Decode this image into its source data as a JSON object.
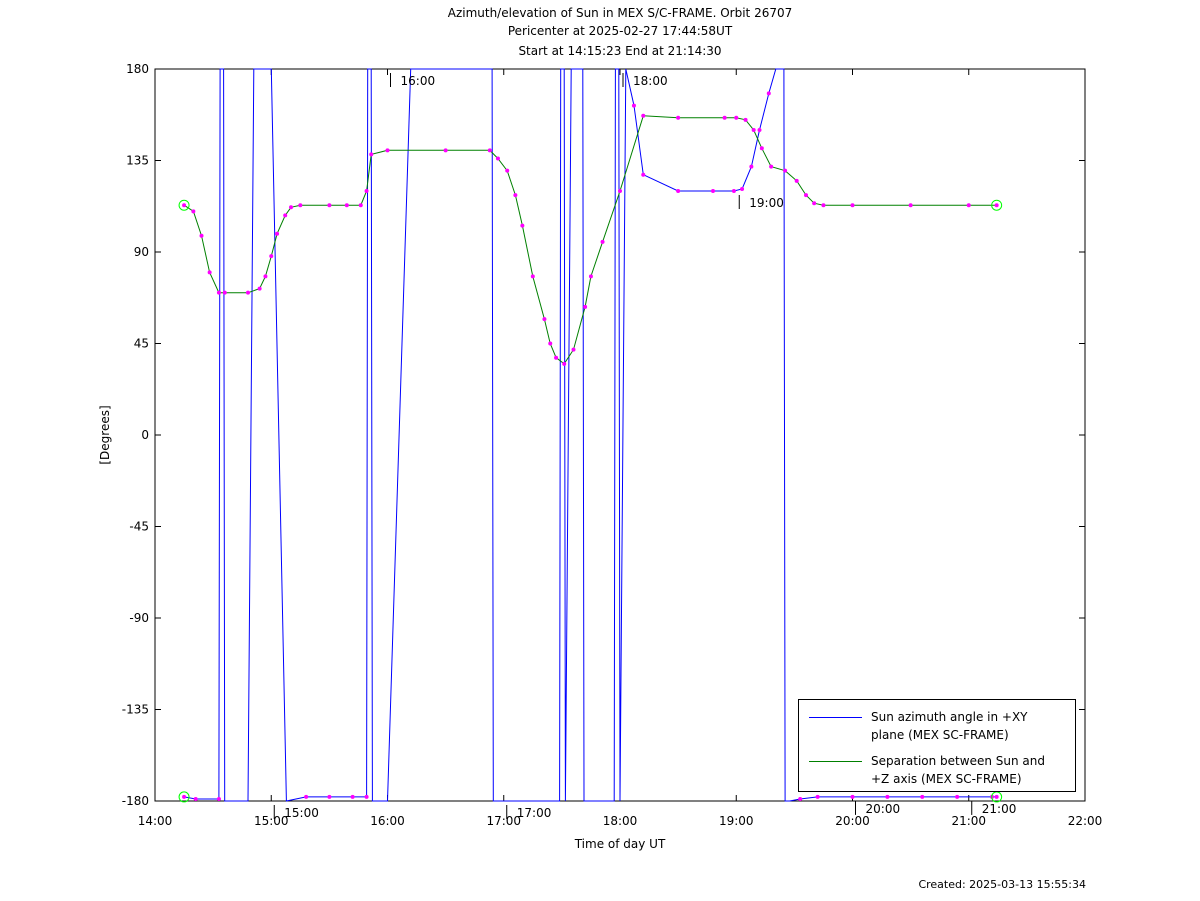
{
  "chart_data": {
    "type": "line",
    "title": "Azimuth/elevation of Sun in MEX S/C-FRAME.  Orbit 26707",
    "subtitle_1": "Pericenter at 2025-02-27 17:44:58UT",
    "subtitle_2": "Start at 14:15:23 End at 21:14:30",
    "xlabel": "Time of day UT",
    "ylabel": "[Degrees]",
    "xlim": [
      14.0,
      22.0
    ],
    "ylim": [
      -180,
      180
    ],
    "x_ticks": [
      14,
      15,
      16,
      17,
      18,
      19,
      20,
      21,
      22
    ],
    "x_tick_labels": [
      "14:00",
      "15:00",
      "16:00",
      "17:00",
      "18:00",
      "19:00",
      "20:00",
      "21:00",
      "22:00"
    ],
    "y_ticks": [
      180,
      135,
      90,
      45,
      0,
      -45,
      -90,
      -135,
      -180
    ],
    "y_tick_labels": [
      "180",
      "135",
      "90",
      "45",
      "0",
      "-45",
      "-90",
      "-135",
      "-180"
    ],
    "grid": false,
    "legend_position": "bottom-right",
    "series": [
      {
        "name": "Sun azimuth angle in +XY plane (MEX SC-FRAME)",
        "color": "#0000ff",
        "x": [
          14.25,
          14.35,
          14.55,
          14.56,
          14.59,
          14.6,
          14.7,
          14.8,
          14.85,
          15.0,
          15.13,
          15.3,
          15.5,
          15.7,
          15.82,
          15.83,
          15.86,
          15.87,
          16.0,
          16.2,
          16.5,
          16.9,
          16.91,
          16.94,
          16.95,
          17.1,
          17.3,
          17.48,
          17.49,
          17.52,
          17.53,
          17.58,
          17.59,
          17.65,
          17.68,
          17.69,
          17.75,
          17.95,
          17.96,
          17.99,
          18.0,
          18.05,
          18.12,
          18.2,
          18.5,
          18.8,
          18.98,
          19.05,
          19.13,
          19.2,
          19.28,
          19.34,
          19.41,
          19.42,
          19.45,
          19.46,
          19.55,
          19.7,
          20.0,
          20.3,
          20.6,
          20.9,
          21.2,
          21.24
        ],
        "y": [
          -178,
          -179,
          -179,
          180,
          180,
          -180,
          -180,
          -180,
          180,
          180,
          -180,
          -178,
          -178,
          -178,
          -178,
          180,
          180,
          -180,
          -180,
          180,
          180,
          180,
          -180,
          -180,
          -180,
          -180,
          -180,
          -180,
          180,
          180,
          -180,
          180,
          180,
          180,
          180,
          -180,
          -180,
          -180,
          180,
          180,
          -180,
          180,
          162,
          128,
          120,
          120,
          120,
          121,
          132,
          150,
          168,
          180,
          180,
          -180,
          -180,
          -180,
          -179,
          -178,
          -178,
          -178,
          -178,
          -178,
          -178,
          -178
        ]
      },
      {
        "name": "Separation between Sun and +Z axis (MEX SC-FRAME)",
        "color": "#008000",
        "x": [
          14.25,
          14.33,
          14.4,
          14.47,
          14.55,
          14.6,
          14.8,
          14.9,
          14.95,
          15.0,
          15.05,
          15.12,
          15.17,
          15.25,
          15.5,
          15.65,
          15.77,
          15.82,
          15.86,
          16.0,
          16.5,
          16.88,
          16.95,
          17.03,
          17.1,
          17.16,
          17.25,
          17.35,
          17.4,
          17.45,
          17.52,
          17.6,
          17.7,
          17.75,
          17.85,
          18.0,
          18.2,
          18.5,
          18.9,
          19.0,
          19.08,
          19.15,
          19.22,
          19.3,
          19.42,
          19.52,
          19.6,
          19.67,
          19.75,
          20.0,
          20.5,
          21.0,
          21.24
        ],
        "y": [
          113,
          110,
          98,
          80,
          70,
          70,
          70,
          72,
          78,
          88,
          99,
          108,
          112,
          113,
          113,
          113,
          113,
          120,
          138,
          140,
          140,
          140,
          136,
          130,
          118,
          103,
          78,
          57,
          45,
          38,
          35,
          42,
          63,
          78,
          95,
          120,
          157,
          156,
          156,
          156,
          155,
          150,
          141,
          132,
          130,
          125,
          118,
          114,
          113,
          113,
          113,
          113,
          113
        ]
      }
    ],
    "annotations": [
      "16:00",
      "17:00",
      "18:00",
      "19:00",
      "15:00",
      "20:00",
      "21:00"
    ],
    "created": "Created: 2025-03-13 15:55:34"
  },
  "legend": {
    "series_1_line1": "Sun azimuth angle in +XY",
    "series_1_line2": "plane (MEX SC-FRAME)",
    "series_2_line1": "Separation between Sun and",
    "series_2_line2": "+Z axis (MEX SC-FRAME)"
  },
  "colors": {
    "azimuth": "#0000ff",
    "separation": "#008000",
    "marker": "#ff00ff",
    "endpoint": "#00ff00"
  }
}
